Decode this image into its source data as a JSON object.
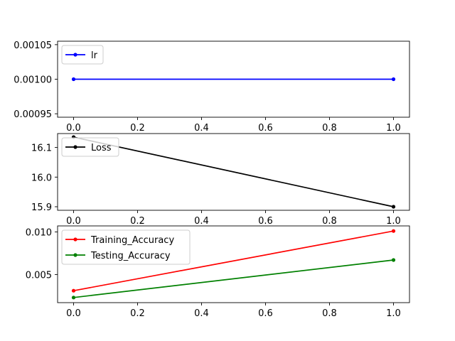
{
  "chart_data": [
    {
      "type": "line",
      "title": "",
      "xlabel": "",
      "ylabel": "",
      "x": [
        0,
        1
      ],
      "xlim": [
        -0.05,
        1.05
      ],
      "ylim": [
        0.000945,
        0.001055
      ],
      "xticks": [
        "0.0",
        "0.2",
        "0.4",
        "0.6",
        "0.8",
        "1.0"
      ],
      "xtick_values": [
        0.0,
        0.2,
        0.4,
        0.6,
        0.8,
        1.0
      ],
      "yticks": [
        "0.00095",
        "0.00100",
        "0.00105"
      ],
      "ytick_values": [
        0.00095,
        0.001,
        0.00105
      ],
      "legend_location": "upper-left",
      "series": [
        {
          "name": "lr",
          "color": "#0000ff",
          "values": [
            0.001,
            0.001
          ]
        }
      ]
    },
    {
      "type": "line",
      "title": "",
      "xlabel": "",
      "ylabel": "",
      "x": [
        0,
        1
      ],
      "xlim": [
        -0.05,
        1.05
      ],
      "ylim": [
        15.888,
        16.147
      ],
      "xticks": [
        "0.0",
        "0.2",
        "0.4",
        "0.6",
        "0.8",
        "1.0"
      ],
      "xtick_values": [
        0.0,
        0.2,
        0.4,
        0.6,
        0.8,
        1.0
      ],
      "yticks": [
        "15.9",
        "16.0",
        "16.1"
      ],
      "ytick_values": [
        15.9,
        16.0,
        16.1
      ],
      "legend_location": "upper-left",
      "series": [
        {
          "name": "Loss",
          "color": "#000000",
          "values": [
            16.135,
            15.9
          ]
        }
      ]
    },
    {
      "type": "line",
      "title": "",
      "xlabel": "",
      "ylabel": "",
      "x": [
        0,
        1
      ],
      "xlim": [
        -0.05,
        1.05
      ],
      "ylim": [
        0.0017,
        0.0107
      ],
      "xticks": [
        "0.0",
        "0.2",
        "0.4",
        "0.6",
        "0.8",
        "1.0"
      ],
      "xtick_values": [
        0.0,
        0.2,
        0.4,
        0.6,
        0.8,
        1.0
      ],
      "yticks": [
        "0.005",
        "0.010"
      ],
      "ytick_values": [
        0.005,
        0.01
      ],
      "legend_location": "upper-left",
      "series": [
        {
          "name": "Training_Accuracy",
          "color": "#ff0000",
          "values": [
            0.0031,
            0.0101
          ]
        },
        {
          "name": "Testing_Accuracy",
          "color": "#008000",
          "values": [
            0.0023,
            0.0067
          ]
        }
      ]
    }
  ]
}
